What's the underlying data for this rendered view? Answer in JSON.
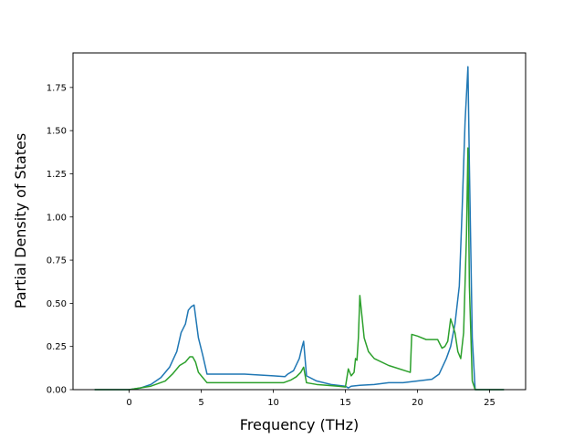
{
  "chart_data": {
    "type": "line",
    "title": "",
    "xlabel": "Frequency (THz)",
    "ylabel": "Partial Density of States",
    "xlim": [
      -3.9,
      27.5
    ],
    "ylim": [
      0.0,
      1.95
    ],
    "xticks": [
      0,
      5,
      10,
      15,
      20,
      25
    ],
    "xtick_labels": [
      "0",
      "5",
      "10",
      "15",
      "20",
      "25"
    ],
    "yticks": [
      0.0,
      0.25,
      0.5,
      0.75,
      1.0,
      1.25,
      1.5,
      1.75
    ],
    "ytick_labels": [
      "0.00",
      "0.25",
      "0.50",
      "0.75",
      "1.00",
      "1.25",
      "1.50",
      "1.75"
    ],
    "grid": false,
    "legend": "none",
    "series": [
      {
        "color": "#1f77b4",
        "x": [
          -2.4,
          0.0,
          0.8,
          1.5,
          2.2,
          2.8,
          3.3,
          3.6,
          3.9,
          4.1,
          4.3,
          4.5,
          4.8,
          5.1,
          5.4,
          8.0,
          10.0,
          10.8,
          11.0,
          11.4,
          11.8,
          12.0,
          12.1,
          12.3,
          13.0,
          14.0,
          15.0,
          15.2,
          15.4,
          16.0,
          17.0,
          18.0,
          19.0,
          20.0,
          21.0,
          21.5,
          22.0,
          22.3,
          22.6,
          22.9,
          23.1,
          23.3,
          23.5,
          23.6,
          23.8,
          24.0,
          26.0
        ],
        "y": [
          0.0,
          0.0,
          0.01,
          0.03,
          0.07,
          0.13,
          0.22,
          0.33,
          0.38,
          0.46,
          0.48,
          0.49,
          0.3,
          0.2,
          0.09,
          0.09,
          0.08,
          0.075,
          0.09,
          0.11,
          0.18,
          0.25,
          0.28,
          0.08,
          0.05,
          0.03,
          0.02,
          0.01,
          0.02,
          0.025,
          0.03,
          0.04,
          0.04,
          0.05,
          0.06,
          0.09,
          0.18,
          0.25,
          0.38,
          0.6,
          1.05,
          1.55,
          1.87,
          1.3,
          0.3,
          0.0,
          0.0
        ]
      },
      {
        "color": "#2ca02c",
        "x": [
          -2.4,
          0.0,
          1.5,
          2.5,
          3.0,
          3.5,
          3.9,
          4.2,
          4.4,
          4.6,
          4.8,
          5.1,
          5.4,
          8.0,
          10.7,
          11.2,
          11.6,
          11.9,
          12.1,
          12.3,
          13.0,
          14.5,
          15.0,
          15.2,
          15.4,
          15.6,
          15.7,
          15.8,
          15.9,
          16.0,
          16.3,
          16.6,
          17.0,
          18.0,
          19.5,
          19.6,
          20.0,
          20.6,
          21.4,
          21.7,
          21.9,
          22.1,
          22.3,
          22.6,
          22.8,
          23.0,
          23.2,
          23.4,
          23.5,
          23.6,
          23.8,
          24.0,
          26.0
        ],
        "y": [
          0.0,
          0.0,
          0.02,
          0.05,
          0.09,
          0.14,
          0.16,
          0.19,
          0.19,
          0.16,
          0.1,
          0.07,
          0.04,
          0.04,
          0.04,
          0.055,
          0.075,
          0.1,
          0.13,
          0.04,
          0.03,
          0.02,
          0.015,
          0.12,
          0.08,
          0.1,
          0.18,
          0.17,
          0.3,
          0.545,
          0.3,
          0.22,
          0.18,
          0.14,
          0.1,
          0.32,
          0.31,
          0.29,
          0.29,
          0.24,
          0.25,
          0.28,
          0.41,
          0.33,
          0.22,
          0.18,
          0.33,
          0.9,
          1.4,
          0.6,
          0.05,
          0.0,
          0.0
        ]
      }
    ]
  }
}
